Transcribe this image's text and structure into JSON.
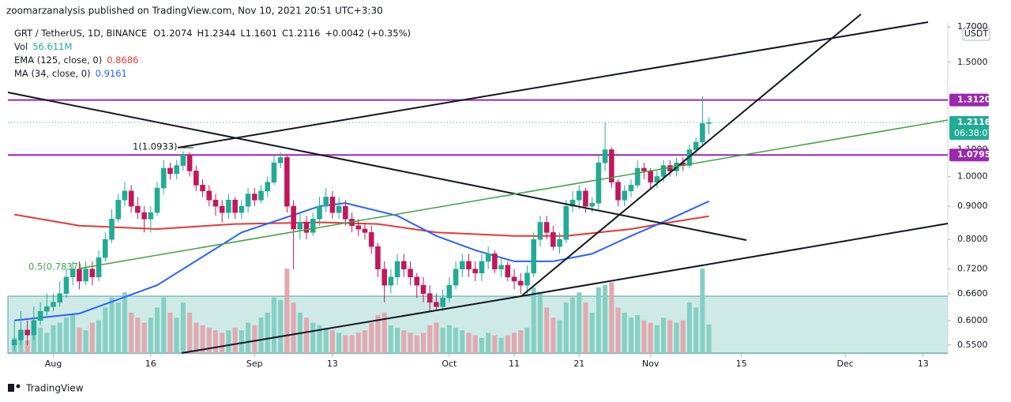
{
  "chart_data": {
    "type": "candlestick",
    "header": {
      "publisher": "zoomarzanalysis published on TradingView.com, Nov 10, 2021 20:51 UTC+3:30",
      "symbol": "GRT / TetherUS, 1D, BINANCE",
      "ohlc": [
        "O1.2074",
        "H1.2344",
        "L1.1601",
        "C1.2116",
        "+0.0042 (+0.35%)"
      ]
    },
    "currency": "USDT",
    "brand": "TradingView",
    "up_color": "#22ab94",
    "down_color": "#c2185b",
    "log_scale": true,
    "open": [
      0.55,
      0.56,
      0.58,
      0.57,
      0.6,
      0.62,
      0.63,
      0.64,
      0.66,
      0.7,
      0.72,
      0.69,
      0.72,
      0.7,
      0.75,
      0.8,
      0.86,
      0.92,
      0.95,
      0.9,
      0.88,
      0.86,
      0.88,
      0.96,
      1.03,
      1.01,
      1.04,
      1.08,
      1.02,
      0.97,
      0.95,
      0.92,
      0.9,
      0.88,
      0.92,
      0.88,
      0.9,
      0.94,
      0.92,
      0.95,
      0.98,
      1.05,
      1.07,
      0.9,
      0.83,
      0.85,
      0.82,
      0.86,
      0.9,
      0.93,
      0.88,
      0.9,
      0.86,
      0.84,
      0.83,
      0.82,
      0.78,
      0.72,
      0.68,
      0.7,
      0.74,
      0.72,
      0.7,
      0.68,
      0.66,
      0.64,
      0.63,
      0.65,
      0.68,
      0.72,
      0.74,
      0.72,
      0.71,
      0.74,
      0.76,
      0.72,
      0.73,
      0.7,
      0.69,
      0.68,
      0.71,
      0.8,
      0.85,
      0.82,
      0.78,
      0.8,
      0.9,
      0.92,
      0.95,
      0.9,
      0.91,
      1.05,
      1.1,
      0.98,
      0.92,
      0.95,
      0.97,
      1.03,
      1.02,
      0.98,
      1.0,
      1.04,
      1.02,
      1.05,
      1.04,
      1.1,
      1.13,
      1.2074
    ],
    "high": [
      0.6,
      0.62,
      0.6,
      0.63,
      0.64,
      0.66,
      0.66,
      0.69,
      0.72,
      0.74,
      0.74,
      0.74,
      0.74,
      0.77,
      0.82,
      0.89,
      0.94,
      0.98,
      0.97,
      0.93,
      0.9,
      0.9,
      0.98,
      1.06,
      1.05,
      1.06,
      1.0933,
      1.09,
      1.04,
      0.99,
      0.97,
      0.94,
      0.92,
      0.94,
      0.93,
      0.92,
      0.96,
      0.96,
      0.97,
      1.0,
      1.08,
      1.09,
      1.08,
      0.92,
      0.88,
      0.87,
      0.88,
      0.93,
      0.96,
      0.95,
      0.93,
      0.92,
      0.88,
      0.86,
      0.85,
      0.84,
      0.79,
      0.74,
      0.72,
      0.76,
      0.76,
      0.74,
      0.71,
      0.7,
      0.68,
      0.66,
      0.67,
      0.7,
      0.74,
      0.76,
      0.76,
      0.74,
      0.76,
      0.78,
      0.77,
      0.75,
      0.74,
      0.72,
      0.71,
      0.73,
      0.82,
      0.87,
      0.87,
      0.84,
      0.82,
      0.92,
      0.95,
      0.97,
      0.96,
      0.93,
      1.08,
      1.21,
      1.11,
      0.99,
      0.97,
      0.99,
      1.06,
      1.05,
      1.03,
      1.02,
      1.06,
      1.06,
      1.07,
      1.07,
      1.12,
      1.15,
      1.33,
      1.2344
    ],
    "low": [
      0.54,
      0.55,
      0.55,
      0.56,
      0.59,
      0.61,
      0.62,
      0.63,
      0.65,
      0.68,
      0.67,
      0.68,
      0.68,
      0.69,
      0.74,
      0.79,
      0.85,
      0.9,
      0.88,
      0.86,
      0.82,
      0.82,
      0.87,
      0.94,
      0.99,
      0.99,
      1.02,
      1.0,
      0.95,
      0.93,
      0.9,
      0.87,
      0.85,
      0.86,
      0.86,
      0.86,
      0.88,
      0.9,
      0.91,
      0.93,
      0.97,
      1.03,
      0.88,
      0.72,
      0.8,
      0.8,
      0.81,
      0.84,
      0.88,
      0.86,
      0.86,
      0.84,
      0.82,
      0.81,
      0.8,
      0.76,
      0.7,
      0.64,
      0.66,
      0.68,
      0.7,
      0.68,
      0.65,
      0.64,
      0.62,
      0.62,
      0.62,
      0.64,
      0.67,
      0.7,
      0.7,
      0.69,
      0.69,
      0.72,
      0.71,
      0.7,
      0.69,
      0.67,
      0.66,
      0.66,
      0.7,
      0.78,
      0.8,
      0.77,
      0.76,
      0.79,
      0.88,
      0.89,
      0.88,
      0.88,
      0.89,
      1.02,
      0.96,
      0.9,
      0.9,
      0.93,
      0.96,
      0.99,
      0.96,
      0.96,
      0.98,
      1.0,
      1.0,
      1.02,
      1.03,
      1.08,
      1.12,
      1.1601
    ],
    "close": [
      0.56,
      0.58,
      0.57,
      0.6,
      0.62,
      0.63,
      0.64,
      0.66,
      0.7,
      0.72,
      0.69,
      0.72,
      0.7,
      0.75,
      0.8,
      0.86,
      0.92,
      0.95,
      0.9,
      0.88,
      0.86,
      0.88,
      0.96,
      1.03,
      1.01,
      1.04,
      1.08,
      1.02,
      0.97,
      0.95,
      0.92,
      0.9,
      0.88,
      0.92,
      0.88,
      0.9,
      0.94,
      0.92,
      0.95,
      0.98,
      1.05,
      1.07,
      0.9,
      0.83,
      0.85,
      0.82,
      0.86,
      0.9,
      0.93,
      0.88,
      0.9,
      0.86,
      0.84,
      0.83,
      0.82,
      0.78,
      0.72,
      0.68,
      0.7,
      0.74,
      0.72,
      0.7,
      0.68,
      0.66,
      0.64,
      0.63,
      0.65,
      0.68,
      0.72,
      0.74,
      0.72,
      0.71,
      0.74,
      0.76,
      0.72,
      0.73,
      0.7,
      0.69,
      0.68,
      0.71,
      0.8,
      0.85,
      0.82,
      0.78,
      0.8,
      0.9,
      0.92,
      0.95,
      0.9,
      0.91,
      1.05,
      1.1,
      0.98,
      0.92,
      0.95,
      0.97,
      1.03,
      1.02,
      0.98,
      1.0,
      1.04,
      1.02,
      1.05,
      1.04,
      1.1,
      1.13,
      1.2074,
      1.2116
    ],
    "volume": {
      "name": "Vol",
      "last_label": "56.611M",
      "up_color": "#86cfc3",
      "down_color": "#e3a8b0",
      "values": [
        30,
        40,
        25,
        45,
        50,
        40,
        55,
        60,
        70,
        75,
        50,
        45,
        60,
        65,
        90,
        110,
        100,
        120,
        80,
        70,
        60,
        70,
        90,
        110,
        80,
        70,
        100,
        80,
        60,
        55,
        50,
        45,
        40,
        45,
        50,
        45,
        60,
        55,
        70,
        80,
        110,
        105,
        167,
        100,
        80,
        70,
        60,
        55,
        50,
        45,
        40,
        35,
        35,
        40,
        45,
        60,
        75,
        80,
        55,
        50,
        45,
        40,
        35,
        40,
        55,
        60,
        50,
        55,
        50,
        45,
        40,
        35,
        30,
        40,
        35,
        30,
        35,
        40,
        45,
        50,
        130,
        120,
        90,
        70,
        65,
        100,
        110,
        120,
        100,
        80,
        130,
        135,
        140,
        90,
        80,
        70,
        75,
        65,
        60,
        55,
        70,
        65,
        60,
        65,
        100,
        90,
        167,
        56.611
      ]
    },
    "indicators": [
      {
        "name": "EMA (125, close, 0)",
        "color": "#e53935",
        "last_label": "0.8686",
        "x": [
          0,
          10,
          22,
          34,
          47,
          56,
          65,
          77,
          85,
          95,
          101,
          107
        ],
        "values": [
          0.874,
          0.84,
          0.83,
          0.845,
          0.85,
          0.845,
          0.82,
          0.81,
          0.81,
          0.83,
          0.85,
          0.8686
        ]
      },
      {
        "name": "MA (34, close, 0)",
        "color": "#2962ff",
        "last_label": "0.9161",
        "x": [
          0,
          10,
          22,
          35,
          47,
          51,
          59,
          65,
          71,
          77,
          83,
          89,
          95,
          101,
          107
        ],
        "values": [
          0.6,
          0.615,
          0.68,
          0.82,
          0.9,
          0.91,
          0.87,
          0.81,
          0.77,
          0.74,
          0.74,
          0.76,
          0.81,
          0.86,
          0.9161
        ]
      }
    ],
    "ylim": [
      0.533,
      1.73
    ],
    "yticks": [
      {
        "value": 0.55,
        "label": "0.5500"
      },
      {
        "value": 0.6,
        "label": "0.6000"
      },
      {
        "value": 0.66,
        "label": "0.6600"
      },
      {
        "value": 0.72,
        "label": "0.7200"
      },
      {
        "value": 0.8,
        "label": "0.8000"
      },
      {
        "value": 0.9,
        "label": "0.9000"
      },
      {
        "value": 1.0,
        "label": "1.0000"
      },
      {
        "value": 1.1,
        "label": "1.1000"
      },
      {
        "value": 1.5,
        "label": "1.5000"
      },
      {
        "value": 1.7,
        "label": "1.7000"
      }
    ],
    "xlim": [
      -1,
      143.8
    ],
    "xticks": [
      {
        "value": 6,
        "label": "Aug"
      },
      {
        "value": 21,
        "label": "16"
      },
      {
        "value": 37,
        "label": "Sep"
      },
      {
        "value": 49,
        "label": "13"
      },
      {
        "value": 67,
        "label": "Oct"
      },
      {
        "value": 77,
        "label": "11"
      },
      {
        "value": 87,
        "label": "21"
      },
      {
        "value": 98,
        "label": "Nov"
      },
      {
        "value": 112,
        "label": "15"
      },
      {
        "value": 128,
        "label": "Dec"
      },
      {
        "value": 140,
        "label": "13"
      }
    ],
    "hlines": [
      {
        "value": 1.312,
        "label": "1.3120",
        "color": "#9c27b0"
      },
      {
        "value": 1.0795,
        "label": "1.0795",
        "color": "#9c27b0"
      }
    ],
    "last_price": {
      "value": 1.2116,
      "label": "1.2116",
      "countdown": "06:38:07",
      "color": "#22ab94"
    },
    "annotations": [
      "1(1.0933)",
      "0.5(0.7837)"
    ]
  }
}
